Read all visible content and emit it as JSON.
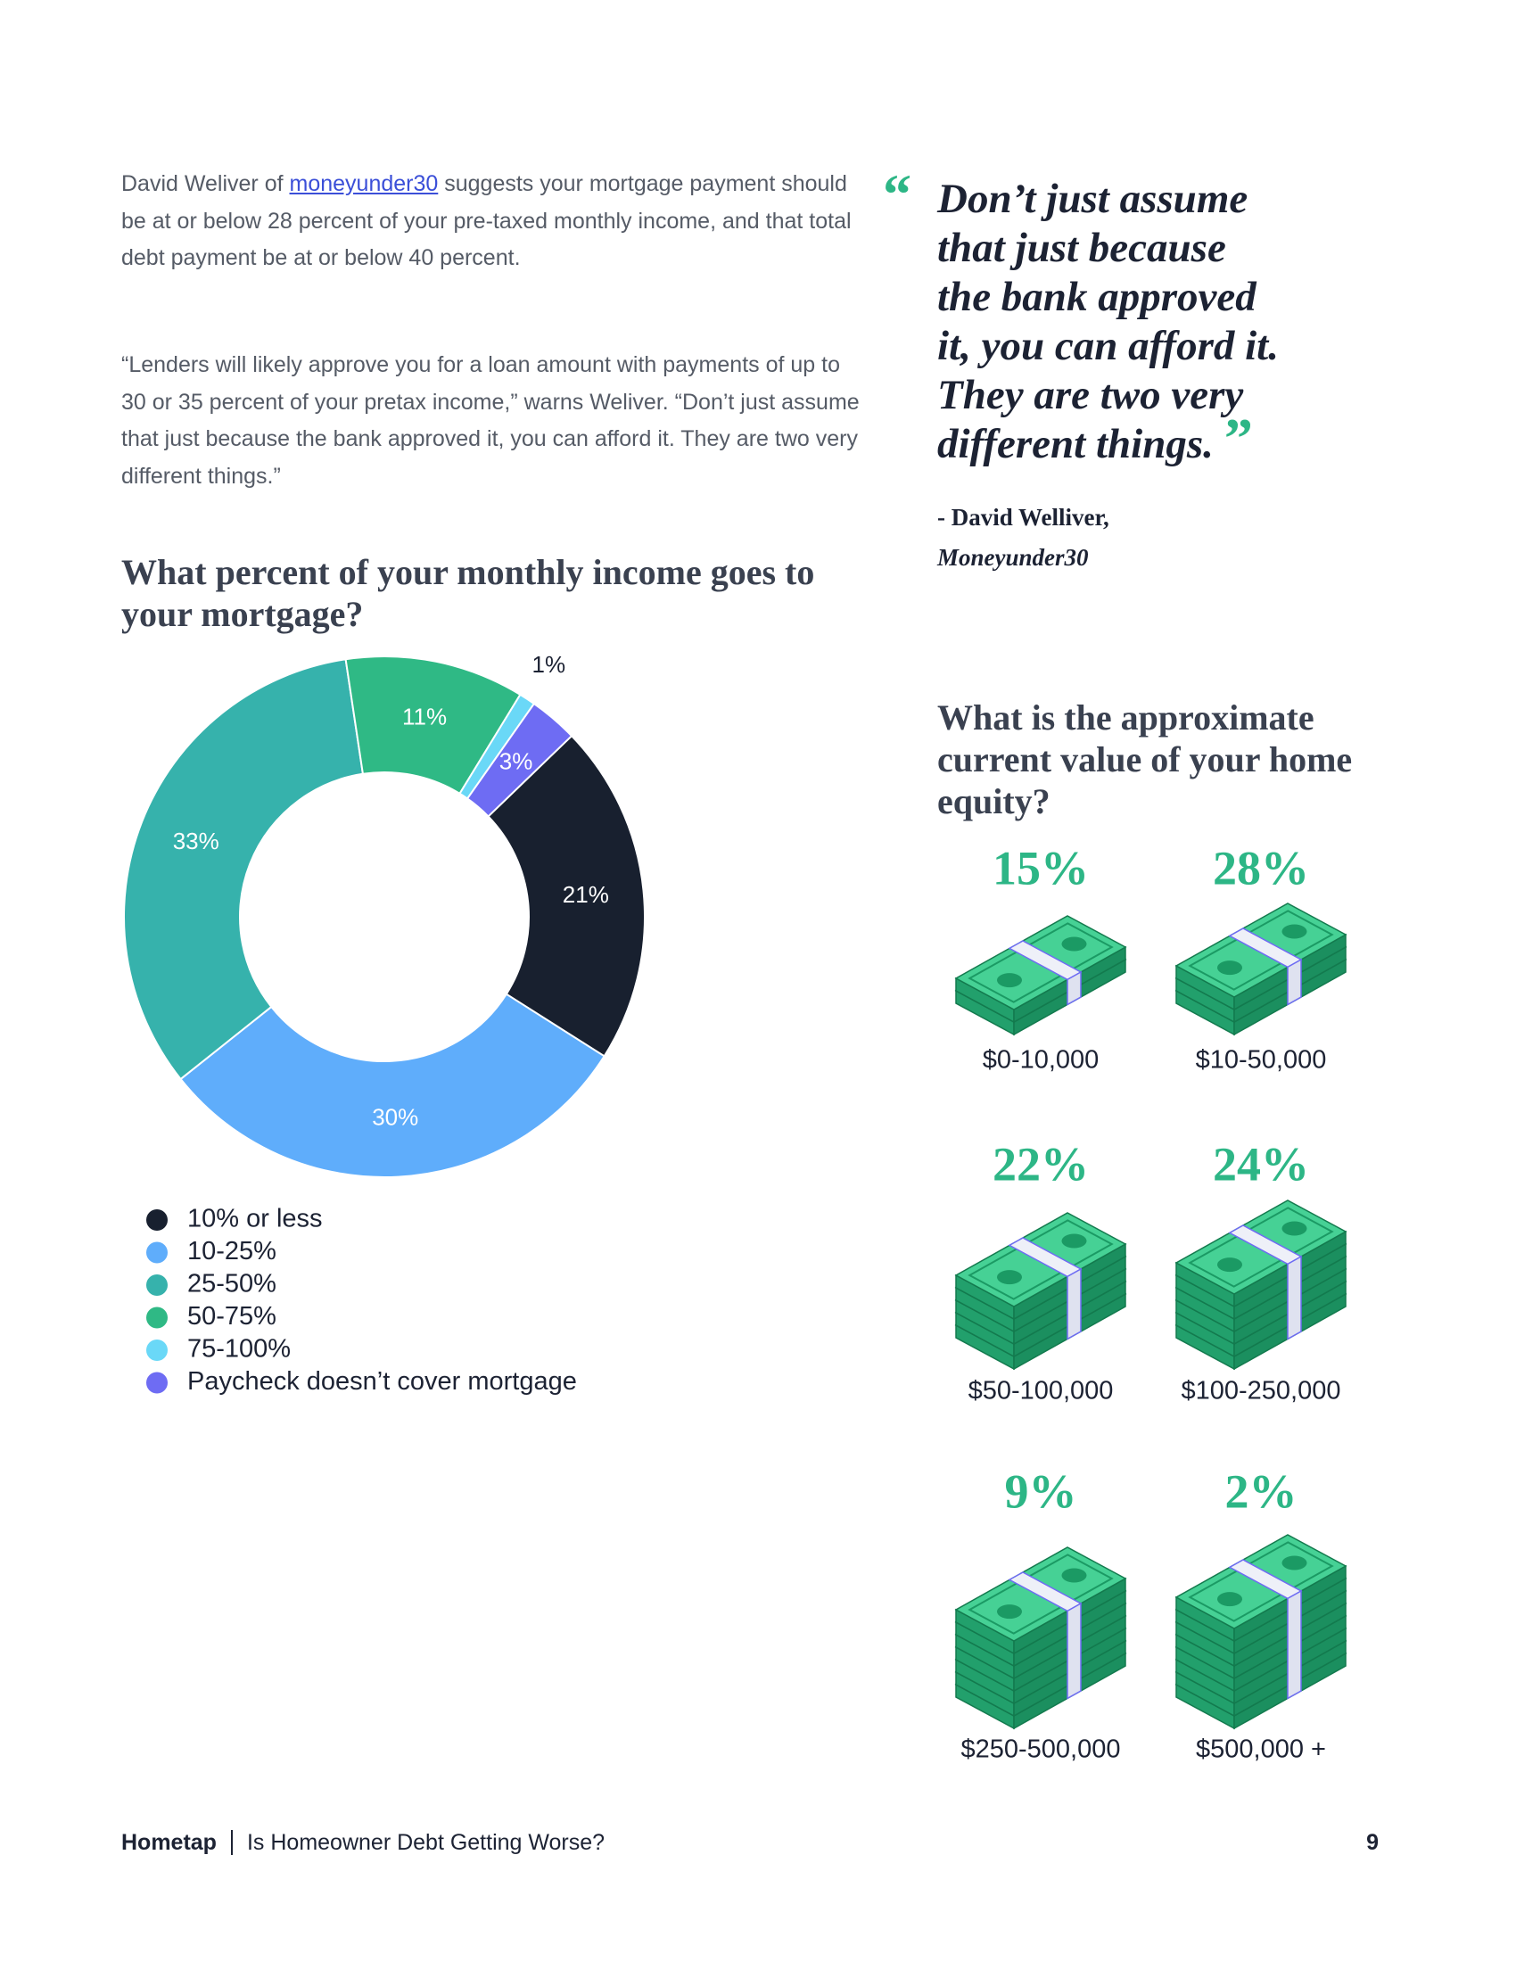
{
  "body": {
    "paragraph_1": {
      "before": "David Weliver of ",
      "link": "moneyunder30",
      "after": " suggests your mortgage payment should be at or below 28 percent of your pre-taxed monthly income, and that total debt payment be at or below 40 percent."
    },
    "paragraph_2": "“Lenders will likely approve you for a loan amount with payments of up to 30 or 35 percent of your pretax income,” warns Weliver. “Don’t just assume that just because the bank approved it, you can afford it. They are two very different things.”"
  },
  "quote": {
    "open_mark": "“",
    "lines": [
      "Don’t just assume",
      "that just because",
      "the bank approved",
      "it, you can afford it.",
      "They are two very",
      "different things."
    ],
    "close_mark": "”",
    "attribution_name": "- David Welliver,",
    "attribution_source": "Moneyunder30"
  },
  "chart_data": [
    {
      "type": "donut",
      "title": "What percent of your monthly income goes to your mortgage?",
      "categories": [
        "10% or less",
        "10-25%",
        "25-50%",
        "50-75%",
        "75-100%",
        "Paycheck doesn’t cover mortgage"
      ],
      "values": [
        21,
        30,
        33,
        11,
        1,
        3
      ],
      "value_labels": [
        "21%",
        "30%",
        "33%",
        "11%",
        "1%",
        "3%"
      ],
      "colors": [
        "#18202f",
        "#5fadfb",
        "#36b2ac",
        "#2fb985",
        "#6ad8f7",
        "#6e6cf3"
      ],
      "legend": "bottom-left"
    },
    {
      "type": "pictograph",
      "title": "What is the approximate current value of your home equity?",
      "categories": [
        "$0-10,000",
        "$10-50,000",
        "$50-100,000",
        "$100-250,000",
        "$250-500,000",
        "$500,000 +"
      ],
      "values": [
        15,
        28,
        22,
        24,
        9,
        2
      ],
      "value_labels": [
        "15%",
        "28%",
        "22%",
        "24%",
        "9%",
        "2%"
      ],
      "color": "#2db686"
    }
  ],
  "footer": {
    "brand": "Hometap",
    "title": "Is Homeowner Debt Getting Worse?",
    "page_number": 9
  }
}
